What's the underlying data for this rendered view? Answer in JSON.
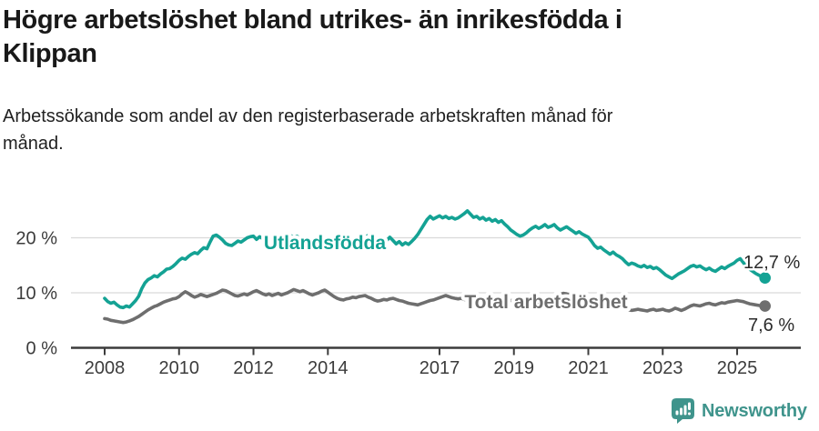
{
  "header": {
    "title_lines": [
      "Högre arbetslöshet bland utrikes- än inrikesfödda i",
      "Klippan"
    ],
    "subtitle_lines": [
      "Arbetssökande som andel av den registerbaserade arbetskraften månad för",
      "månad."
    ]
  },
  "footer": {
    "brand": "Newsworthy"
  },
  "colors": {
    "accent_teal": "#14a294",
    "series_gray": "#6e6e6e",
    "grid": "#d9d9d9",
    "axis": "#3c3c3c",
    "value_label": "#2b2b2b",
    "logo_teal": "#3f948c"
  },
  "chart_data": {
    "type": "line",
    "title": "Högre arbetslöshet bland utrikes- än inrikesfödda i Klippan",
    "subtitle": "Arbetssökande som andel av den registerbaserade arbetskraften månad för månad.",
    "x_unit": "month",
    "x_start": "2008-01",
    "x_end": "2025-10",
    "x_ticks": [
      2008,
      2010,
      2012,
      2014,
      2017,
      2019,
      2021,
      2023,
      2025
    ],
    "y_ticks": [
      {
        "value": 0,
        "label": "0 %"
      },
      {
        "value": 10,
        "label": "10 %"
      },
      {
        "value": 20,
        "label": "20 %"
      }
    ],
    "ylim": [
      0,
      26
    ],
    "grid": "horizontal",
    "legend_position": "inline-on-line",
    "series": [
      {
        "name": "Utlandsfödda",
        "color": "#14a294",
        "end_value": 12.7,
        "end_label": "12,7 %",
        "values": [
          9.0,
          8.4,
          8.1,
          8.3,
          7.8,
          7.4,
          7.3,
          7.6,
          7.4,
          8.0,
          8.6,
          9.4,
          10.8,
          11.8,
          12.4,
          12.7,
          13.1,
          12.9,
          13.4,
          13.8,
          14.3,
          14.4,
          14.8,
          15.3,
          15.9,
          16.3,
          16.1,
          16.6,
          17.0,
          17.3,
          17.1,
          17.7,
          18.2,
          18.0,
          19.2,
          20.3,
          20.5,
          20.1,
          19.6,
          19.0,
          18.7,
          18.6,
          19.0,
          19.4,
          19.2,
          19.6,
          20.0,
          20.2,
          20.3,
          19.7,
          20.2,
          19.8,
          19.5,
          19.7,
          19.4,
          19.6,
          19.9,
          19.7,
          20.0,
          20.2,
          20.4,
          20.1,
          20.3,
          19.9,
          19.7,
          19.9,
          19.6,
          19.8,
          20.0,
          19.7,
          19.9,
          20.1,
          19.8,
          20.0,
          19.6,
          19.4,
          19.6,
          19.3,
          19.5,
          19.7,
          19.4,
          19.6,
          19.8,
          20.0,
          20.2,
          20.4,
          19.9,
          19.6,
          19.2,
          18.9,
          19.1,
          19.5,
          20.1,
          19.5,
          18.9,
          19.3,
          18.7,
          19.1,
          18.8,
          19.3,
          19.9,
          20.6,
          21.5,
          22.4,
          23.3,
          23.9,
          23.4,
          23.7,
          24.0,
          23.6,
          23.9,
          23.5,
          23.7,
          23.4,
          23.6,
          24.0,
          24.4,
          24.9,
          24.3,
          23.7,
          23.9,
          23.4,
          23.7,
          23.2,
          23.5,
          23.0,
          23.3,
          22.8,
          23.1,
          22.5,
          22.0,
          21.4,
          21.0,
          20.6,
          20.3,
          20.5,
          20.9,
          21.4,
          21.8,
          22.1,
          21.7,
          22.0,
          22.4,
          21.9,
          22.1,
          22.4,
          21.8,
          21.4,
          21.7,
          22.0,
          21.6,
          21.2,
          20.8,
          21.1,
          20.7,
          20.4,
          20.1,
          19.4,
          18.6,
          18.1,
          18.3,
          17.8,
          17.4,
          17.0,
          17.4,
          16.9,
          16.6,
          16.2,
          15.6,
          15.1,
          15.4,
          15.2,
          14.9,
          14.7,
          15.0,
          14.6,
          14.8,
          14.4,
          14.6,
          14.2,
          13.7,
          13.2,
          12.9,
          12.6,
          13.0,
          13.4,
          13.7,
          14.0,
          14.4,
          14.8,
          15.0,
          14.7,
          14.9,
          14.5,
          14.2,
          14.5,
          14.1,
          13.9,
          14.3,
          14.7,
          14.4,
          14.8,
          15.1,
          15.4,
          15.9,
          16.2,
          15.5,
          14.8,
          14.3,
          13.9,
          13.5,
          13.2,
          12.9,
          12.7
        ]
      },
      {
        "name": "Total arbetslöshet",
        "color": "#6e6e6e",
        "end_value": 7.6,
        "end_label": "7,6 %",
        "values": [
          5.3,
          5.2,
          5.0,
          4.9,
          4.8,
          4.7,
          4.6,
          4.7,
          4.9,
          5.1,
          5.4,
          5.7,
          6.1,
          6.5,
          6.9,
          7.2,
          7.5,
          7.7,
          8.0,
          8.3,
          8.5,
          8.7,
          8.9,
          9.0,
          9.3,
          9.8,
          10.2,
          9.9,
          9.5,
          9.2,
          9.4,
          9.7,
          9.5,
          9.3,
          9.5,
          9.7,
          9.9,
          10.2,
          10.5,
          10.4,
          10.1,
          9.8,
          9.5,
          9.4,
          9.6,
          9.8,
          9.6,
          9.9,
          10.2,
          10.4,
          10.1,
          9.8,
          9.6,
          9.8,
          9.5,
          9.7,
          9.9,
          9.6,
          9.8,
          10.0,
          10.3,
          10.6,
          10.4,
          10.2,
          10.4,
          10.1,
          9.8,
          9.6,
          9.8,
          10.0,
          10.3,
          10.5,
          10.1,
          9.7,
          9.3,
          9.0,
          8.8,
          8.7,
          8.9,
          9.0,
          9.2,
          9.1,
          9.3,
          9.4,
          9.5,
          9.2,
          9.0,
          8.7,
          8.5,
          8.6,
          8.8,
          8.7,
          8.9,
          9.0,
          8.8,
          8.6,
          8.5,
          8.3,
          8.1,
          8.0,
          7.9,
          7.8,
          8.0,
          8.2,
          8.4,
          8.6,
          8.7,
          8.9,
          9.1,
          9.3,
          9.5,
          9.3,
          9.1,
          9.0,
          8.9,
          9.0,
          8.8,
          8.7,
          8.8,
          8.9,
          8.8,
          8.6,
          8.5,
          8.4,
          8.3,
          8.4,
          8.5,
          8.4,
          8.5,
          8.6,
          8.5,
          8.6,
          8.7,
          8.5,
          8.4,
          8.3,
          8.2,
          8.3,
          8.4,
          8.5,
          8.4,
          8.5,
          8.6,
          8.7,
          8.8,
          9.0,
          9.4,
          9.7,
          9.9,
          9.8,
          9.6,
          9.5,
          9.4,
          9.3,
          9.2,
          9.1,
          9.0,
          8.8,
          8.6,
          8.4,
          8.2,
          8.0,
          7.8,
          7.6,
          7.5,
          7.3,
          7.2,
          7.1,
          7.0,
          6.9,
          6.8,
          6.9,
          7.0,
          6.9,
          6.8,
          6.7,
          6.9,
          7.0,
          6.8,
          6.9,
          7.0,
          6.8,
          6.7,
          6.9,
          7.2,
          7.0,
          6.8,
          7.0,
          7.3,
          7.6,
          7.8,
          7.7,
          7.6,
          7.8,
          8.0,
          8.1,
          7.9,
          7.8,
          8.0,
          8.2,
          8.1,
          8.3,
          8.4,
          8.5,
          8.6,
          8.5,
          8.4,
          8.2,
          8.0,
          7.9,
          7.8,
          7.7,
          7.6,
          7.6
        ]
      }
    ]
  }
}
